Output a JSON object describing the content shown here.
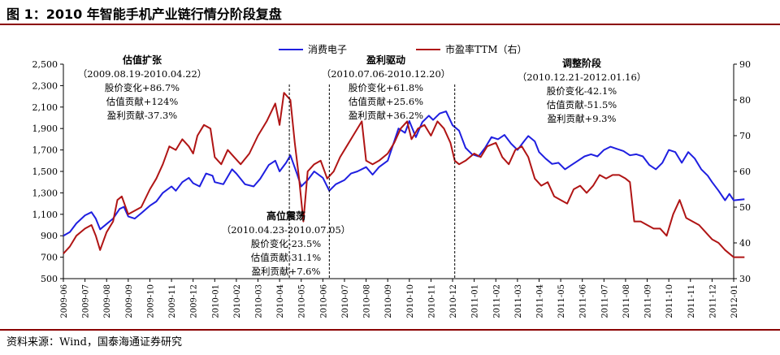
{
  "title": "图 1：2010 年智能手机产业链行情分阶段复盘",
  "source": "资料来源：Wind，国泰海通证券研究",
  "colors": {
    "series_blue": "#1f1fe0",
    "series_red": "#b01515",
    "rule": "#8b0000"
  },
  "chart_data": {
    "type": "line",
    "title": "",
    "xlabel": "",
    "ylabel": "",
    "ylabel_right": "",
    "x_ticks": [
      "2009-06",
      "2009-07",
      "2009-08",
      "2009-09",
      "2009-10",
      "2009-11",
      "2009-12",
      "2010-01",
      "2010-02",
      "2010-03",
      "2010-04",
      "2010-05",
      "2010-06",
      "2010-07",
      "2010-08",
      "2010-09",
      "2010-10",
      "2010-11",
      "2010-12",
      "2011-01",
      "2011-02",
      "2011-03",
      "2011-04",
      "2011-05",
      "2011-06",
      "2011-07",
      "2011-08",
      "2011-09",
      "2011-10",
      "2011-11",
      "2011-12",
      "2012-01"
    ],
    "y_left_ticks": [
      "500",
      "700",
      "900",
      "1,100",
      "1,300",
      "1,500",
      "1,700",
      "1,900",
      "2,100",
      "2,300",
      "2,500"
    ],
    "y_right_ticks": [
      "30",
      "40",
      "50",
      "60",
      "70",
      "80",
      "90"
    ],
    "ylim_left": [
      500,
      2500
    ],
    "ylim_right": [
      30,
      90
    ],
    "legend_position": "top-center",
    "grid": false,
    "series": [
      {
        "name": "消费电子",
        "axis": "left",
        "color": "#1f1fe0",
        "values": [
          [
            0,
            900
          ],
          [
            0.3,
            935
          ],
          [
            0.6,
            1015
          ],
          [
            1,
            1090
          ],
          [
            1.3,
            1120
          ],
          [
            1.5,
            1060
          ],
          [
            1.7,
            960
          ],
          [
            2,
            1010
          ],
          [
            2.3,
            1060
          ],
          [
            2.6,
            1150
          ],
          [
            2.8,
            1170
          ],
          [
            3,
            1080
          ],
          [
            3.3,
            1060
          ],
          [
            3.6,
            1110
          ],
          [
            4,
            1180
          ],
          [
            4.3,
            1220
          ],
          [
            4.6,
            1300
          ],
          [
            5,
            1360
          ],
          [
            5.2,
            1320
          ],
          [
            5.5,
            1400
          ],
          [
            5.8,
            1440
          ],
          [
            6,
            1390
          ],
          [
            6.3,
            1360
          ],
          [
            6.6,
            1480
          ],
          [
            6.9,
            1460
          ],
          [
            7,
            1400
          ],
          [
            7.4,
            1380
          ],
          [
            7.8,
            1520
          ],
          [
            8,
            1480
          ],
          [
            8.4,
            1380
          ],
          [
            8.8,
            1360
          ],
          [
            9.1,
            1430
          ],
          [
            9.5,
            1560
          ],
          [
            9.8,
            1600
          ],
          [
            10,
            1500
          ],
          [
            10.3,
            1580
          ],
          [
            10.5,
            1650
          ],
          [
            10.8,
            1480
          ],
          [
            11,
            1360
          ],
          [
            11.3,
            1420
          ],
          [
            11.6,
            1500
          ],
          [
            12,
            1440
          ],
          [
            12.3,
            1320
          ],
          [
            12.6,
            1380
          ],
          [
            13,
            1420
          ],
          [
            13.3,
            1480
          ],
          [
            13.6,
            1500
          ],
          [
            14,
            1540
          ],
          [
            14.3,
            1470
          ],
          [
            14.6,
            1540
          ],
          [
            15,
            1600
          ],
          [
            15.3,
            1780
          ],
          [
            15.5,
            1900
          ],
          [
            15.8,
            1860
          ],
          [
            16,
            1970
          ],
          [
            16.3,
            1820
          ],
          [
            16.6,
            1960
          ],
          [
            16.9,
            2020
          ],
          [
            17.1,
            1980
          ],
          [
            17.4,
            2040
          ],
          [
            17.7,
            2060
          ],
          [
            18,
            1930
          ],
          [
            18.3,
            1880
          ],
          [
            18.6,
            1720
          ],
          [
            18.9,
            1660
          ],
          [
            19.2,
            1640
          ],
          [
            19.5,
            1720
          ],
          [
            19.8,
            1820
          ],
          [
            20.1,
            1800
          ],
          [
            20.4,
            1840
          ],
          [
            20.7,
            1760
          ],
          [
            21,
            1700
          ],
          [
            21.3,
            1780
          ],
          [
            21.5,
            1830
          ],
          [
            21.8,
            1780
          ],
          [
            22,
            1680
          ],
          [
            22.3,
            1620
          ],
          [
            22.6,
            1570
          ],
          [
            22.9,
            1580
          ],
          [
            23.2,
            1520
          ],
          [
            23.5,
            1560
          ],
          [
            23.8,
            1600
          ],
          [
            24.1,
            1640
          ],
          [
            24.4,
            1660
          ],
          [
            24.7,
            1640
          ],
          [
            25,
            1700
          ],
          [
            25.3,
            1730
          ],
          [
            25.6,
            1710
          ],
          [
            25.9,
            1690
          ],
          [
            26.2,
            1650
          ],
          [
            26.5,
            1660
          ],
          [
            26.8,
            1640
          ],
          [
            27.1,
            1560
          ],
          [
            27.4,
            1520
          ],
          [
            27.7,
            1580
          ],
          [
            28,
            1700
          ],
          [
            28.3,
            1680
          ],
          [
            28.6,
            1580
          ],
          [
            28.9,
            1680
          ],
          [
            29.2,
            1620
          ],
          [
            29.5,
            1520
          ],
          [
            29.8,
            1460
          ],
          [
            30,
            1400
          ],
          [
            30.3,
            1320
          ],
          [
            30.6,
            1230
          ],
          [
            30.8,
            1290
          ],
          [
            31,
            1230
          ],
          [
            31.5,
            1240
          ]
        ]
      },
      {
        "name": "市盈率TTM（右）",
        "axis": "right",
        "color": "#b01515",
        "values": [
          [
            0,
            37
          ],
          [
            0.3,
            39
          ],
          [
            0.6,
            42
          ],
          [
            1,
            44
          ],
          [
            1.3,
            45
          ],
          [
            1.5,
            42
          ],
          [
            1.7,
            38
          ],
          [
            2,
            43
          ],
          [
            2.3,
            46
          ],
          [
            2.5,
            52
          ],
          [
            2.7,
            53
          ],
          [
            3,
            48
          ],
          [
            3.3,
            49
          ],
          [
            3.6,
            50
          ],
          [
            4,
            55
          ],
          [
            4.3,
            58
          ],
          [
            4.6,
            62
          ],
          [
            4.9,
            67
          ],
          [
            5.2,
            66
          ],
          [
            5.5,
            69
          ],
          [
            5.8,
            67
          ],
          [
            6,
            65
          ],
          [
            6.2,
            70
          ],
          [
            6.5,
            73
          ],
          [
            6.8,
            72
          ],
          [
            7,
            64
          ],
          [
            7.3,
            62
          ],
          [
            7.6,
            66
          ],
          [
            7.9,
            64
          ],
          [
            8.2,
            62
          ],
          [
            8.6,
            65
          ],
          [
            9,
            70
          ],
          [
            9.4,
            74
          ],
          [
            9.8,
            79
          ],
          [
            10,
            73
          ],
          [
            10.2,
            82
          ],
          [
            10.5,
            80
          ],
          [
            10.7,
            68
          ],
          [
            10.9,
            58
          ],
          [
            11.1,
            46
          ],
          [
            11.3,
            60
          ],
          [
            11.6,
            62
          ],
          [
            11.9,
            63
          ],
          [
            12.2,
            58
          ],
          [
            12.5,
            60
          ],
          [
            12.8,
            64
          ],
          [
            13.1,
            67
          ],
          [
            13.4,
            70
          ],
          [
            13.8,
            74
          ],
          [
            14,
            63
          ],
          [
            14.3,
            62
          ],
          [
            14.6,
            63
          ],
          [
            15,
            65
          ],
          [
            15.3,
            68
          ],
          [
            15.6,
            72
          ],
          [
            15.9,
            74
          ],
          [
            16.1,
            69
          ],
          [
            16.4,
            72
          ],
          [
            16.7,
            73
          ],
          [
            17,
            70
          ],
          [
            17.3,
            74
          ],
          [
            17.6,
            72
          ],
          [
            17.9,
            68
          ],
          [
            18.1,
            63
          ],
          [
            18.3,
            62
          ],
          [
            18.6,
            63
          ],
          [
            19,
            65
          ],
          [
            19.3,
            64
          ],
          [
            19.6,
            67
          ],
          [
            20,
            68
          ],
          [
            20.3,
            64
          ],
          [
            20.6,
            62
          ],
          [
            20.9,
            66
          ],
          [
            21.2,
            67
          ],
          [
            21.5,
            64
          ],
          [
            21.8,
            58
          ],
          [
            22.1,
            56
          ],
          [
            22.4,
            57
          ],
          [
            22.7,
            53
          ],
          [
            23,
            52
          ],
          [
            23.3,
            51
          ],
          [
            23.6,
            55
          ],
          [
            23.9,
            56
          ],
          [
            24.2,
            54
          ],
          [
            24.5,
            56
          ],
          [
            24.8,
            59
          ],
          [
            25.1,
            58
          ],
          [
            25.4,
            59
          ],
          [
            25.7,
            59
          ],
          [
            26,
            58
          ],
          [
            26.2,
            57
          ],
          [
            26.4,
            46
          ],
          [
            26.7,
            46
          ],
          [
            27,
            45
          ],
          [
            27.3,
            44
          ],
          [
            27.6,
            44
          ],
          [
            27.9,
            42
          ],
          [
            28.2,
            48
          ],
          [
            28.5,
            52
          ],
          [
            28.8,
            47
          ],
          [
            29.1,
            46
          ],
          [
            29.4,
            45
          ],
          [
            29.7,
            43
          ],
          [
            30,
            41
          ],
          [
            30.3,
            40
          ],
          [
            30.6,
            38
          ],
          [
            30.8,
            37
          ],
          [
            31,
            36
          ],
          [
            31.2,
            36
          ],
          [
            31.5,
            36
          ]
        ]
      }
    ],
    "phase_dividers": [
      10.45,
      12.3,
      18.1
    ],
    "annotations": [
      {
        "id": "phase1",
        "lines": [
          "估值扩张",
          "（2009.08.19-2010.04.22）",
          "股价变化+86.7%",
          "估值贡献+124%",
          "盈利贡献-37.3%"
        ]
      },
      {
        "id": "phase2",
        "lines": [
          "高位震荡",
          "（2010.04.23-2010.07.05）",
          "股价变化-23.5%",
          "估值贡献-31.1%",
          "盈利贡献+7.6%"
        ]
      },
      {
        "id": "phase3",
        "lines": [
          "盈利驱动",
          "（2010.07.06-2010.12.20）",
          "股价变化+61.8%",
          "估值贡献+25.6%",
          "盈利贡献+36.2%"
        ]
      },
      {
        "id": "phase4",
        "lines": [
          "调整阶段",
          "（2010.12.21-2012.01.16）",
          "股价变化-42.1%",
          "估值贡献-51.5%",
          "盈利贡献+9.3%"
        ]
      }
    ]
  }
}
